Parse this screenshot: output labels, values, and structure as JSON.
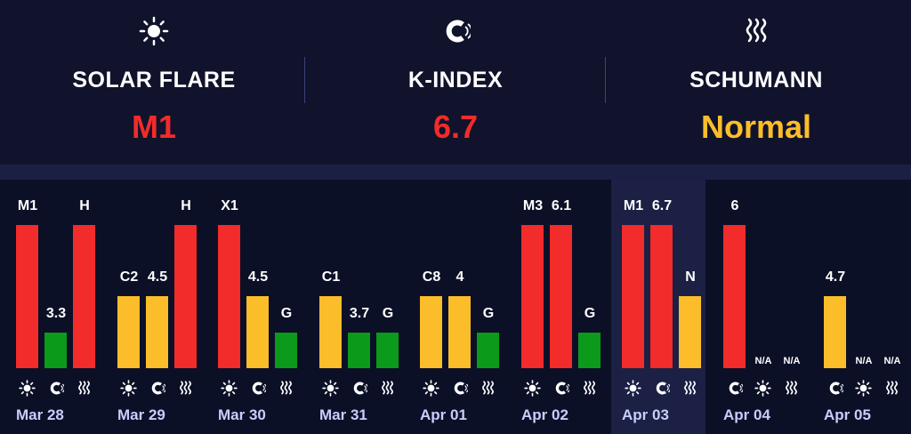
{
  "colors": {
    "red": "#f22b2b",
    "yellow": "#fbbd2a",
    "green": "#0b9a19",
    "white": "#ffffff",
    "date": "#c9cdfb"
  },
  "summary": [
    {
      "icon": "sun-icon",
      "label": "SOLAR FLARE",
      "value": "M1",
      "color": "#f22b2b"
    },
    {
      "icon": "magnet-icon",
      "label": "K-INDEX",
      "value": "6.7",
      "color": "#f22b2b"
    },
    {
      "icon": "waves-icon",
      "label": "SCHUMANN",
      "value": "Normal",
      "color": "#fbbd2a"
    }
  ],
  "days": [
    {
      "date": "Mar 28",
      "today": false,
      "bars": [
        {
          "type": "solar",
          "label": "M1",
          "level": 1.0,
          "color": "#f22b2b"
        },
        {
          "type": "kindex",
          "label": "3.3",
          "level": 0.25,
          "color": "#0b9a19"
        },
        {
          "type": "schumann",
          "label": "H",
          "level": 1.0,
          "color": "#f22b2b"
        }
      ]
    },
    {
      "date": "Mar 29",
      "today": false,
      "bars": [
        {
          "type": "solar",
          "label": "C2",
          "level": 0.5,
          "color": "#fbbd2a"
        },
        {
          "type": "kindex",
          "label": "4.5",
          "level": 0.5,
          "color": "#fbbd2a"
        },
        {
          "type": "schumann",
          "label": "H",
          "level": 1.0,
          "color": "#f22b2b"
        }
      ]
    },
    {
      "date": "Mar 30",
      "today": false,
      "bars": [
        {
          "type": "solar",
          "label": "X1",
          "level": 1.0,
          "color": "#f22b2b"
        },
        {
          "type": "kindex",
          "label": "4.5",
          "level": 0.5,
          "color": "#fbbd2a"
        },
        {
          "type": "schumann",
          "label": "G",
          "level": 0.25,
          "color": "#0b9a19"
        }
      ]
    },
    {
      "date": "Mar 31",
      "today": false,
      "bars": [
        {
          "type": "solar",
          "label": "C1",
          "level": 0.5,
          "color": "#fbbd2a"
        },
        {
          "type": "kindex",
          "label": "3.7",
          "level": 0.25,
          "color": "#0b9a19"
        },
        {
          "type": "schumann",
          "label": "G",
          "level": 0.25,
          "color": "#0b9a19"
        }
      ]
    },
    {
      "date": "Apr 01",
      "today": false,
      "bars": [
        {
          "type": "solar",
          "label": "C8",
          "level": 0.5,
          "color": "#fbbd2a"
        },
        {
          "type": "kindex",
          "label": "4",
          "level": 0.5,
          "color": "#fbbd2a"
        },
        {
          "type": "schumann",
          "label": "G",
          "level": 0.25,
          "color": "#0b9a19"
        }
      ]
    },
    {
      "date": "Apr 02",
      "today": false,
      "bars": [
        {
          "type": "solar",
          "label": "M3",
          "level": 1.0,
          "color": "#f22b2b"
        },
        {
          "type": "kindex",
          "label": "6.1",
          "level": 1.0,
          "color": "#f22b2b"
        },
        {
          "type": "schumann",
          "label": "G",
          "level": 0.25,
          "color": "#0b9a19"
        }
      ]
    },
    {
      "date": "Apr 03",
      "today": true,
      "bars": [
        {
          "type": "solar",
          "label": "M1",
          "level": 1.0,
          "color": "#f22b2b"
        },
        {
          "type": "kindex",
          "label": "6.7",
          "level": 1.0,
          "color": "#f22b2b"
        },
        {
          "type": "schumann",
          "label": "N",
          "level": 0.5,
          "color": "#fbbd2a"
        }
      ]
    },
    {
      "date": "Apr 04",
      "today": false,
      "bars": [
        {
          "type": "kindex",
          "label": "6",
          "level": 1.0,
          "color": "#f22b2b"
        },
        {
          "type": "solar",
          "label": "N/A",
          "level": 0,
          "color": "#f22b2b"
        },
        {
          "type": "schumann",
          "label": "N/A",
          "level": 0,
          "color": "#f22b2b"
        }
      ]
    },
    {
      "date": "Apr 05",
      "today": false,
      "bars": [
        {
          "type": "kindex",
          "label": "4.7",
          "level": 0.5,
          "color": "#fbbd2a"
        },
        {
          "type": "solar",
          "label": "N/A",
          "level": 0,
          "color": "#f22b2b"
        },
        {
          "type": "schumann",
          "label": "N/A",
          "level": 0,
          "color": "#f22b2b"
        }
      ]
    }
  ]
}
